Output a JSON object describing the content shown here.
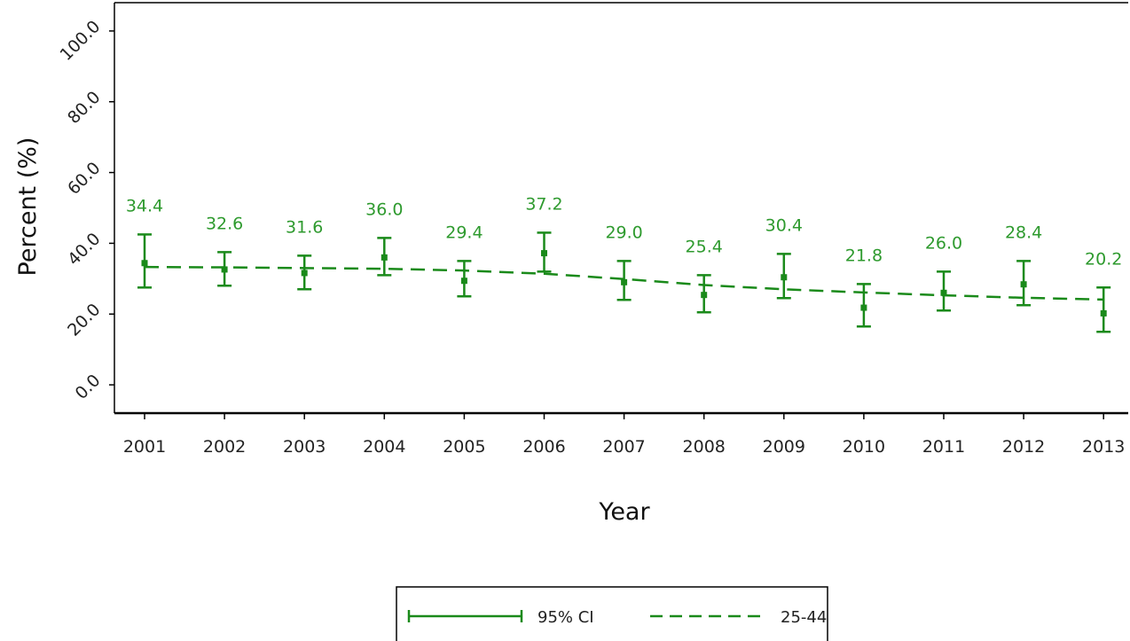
{
  "chart_data": {
    "type": "line",
    "title": "",
    "xlabel": "Year",
    "ylabel": "Percent (%)",
    "ylim": [
      -8,
      108
    ],
    "yticks": [
      "0.0",
      "20.0",
      "40.0",
      "60.0",
      "80.0",
      "100.0"
    ],
    "ytick_values": [
      0,
      20,
      40,
      60,
      80,
      100
    ],
    "categories": [
      "2001",
      "2002",
      "2003",
      "2004",
      "2005",
      "2006",
      "2007",
      "2008",
      "2009",
      "2010",
      "2011",
      "2012",
      "2013"
    ],
    "values": [
      34.4,
      32.6,
      31.6,
      36.0,
      29.4,
      37.2,
      29.0,
      25.4,
      30.4,
      21.8,
      26.0,
      28.4,
      20.2
    ],
    "labels": [
      "34.4",
      "32.6",
      "31.6",
      "36.0",
      "29.4",
      "37.2",
      "29.0",
      "25.4",
      "30.4",
      "21.8",
      "26.0",
      "28.4",
      "20.2"
    ],
    "ci_lower": [
      27.5,
      28.0,
      27.0,
      31.0,
      25.0,
      32.0,
      24.0,
      20.5,
      24.5,
      16.5,
      21.0,
      22.5,
      15.0
    ],
    "ci_upper": [
      42.5,
      37.5,
      36.5,
      41.5,
      35.0,
      43.0,
      35.0,
      31.0,
      37.0,
      28.5,
      32.0,
      35.0,
      27.5
    ],
    "trend": [
      33.3,
      33.2,
      33.0,
      32.8,
      32.3,
      31.4,
      29.9,
      28.2,
      27.0,
      26.1,
      25.3,
      24.6,
      24.1
    ],
    "legend": {
      "placement": "bottom-center",
      "ci_label": "95% CI",
      "series_label": "25-44"
    },
    "grid": false,
    "colors": {
      "series": "#1a8a1a",
      "labels": "#2e9a2e",
      "axis": "#000000"
    }
  }
}
